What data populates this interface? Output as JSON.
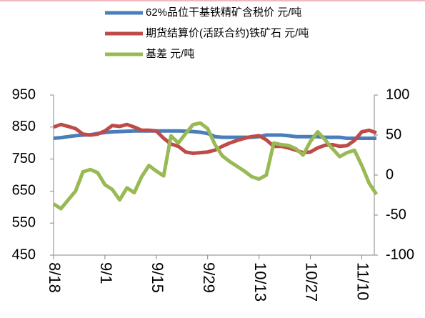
{
  "chart_data": {
    "type": "line",
    "categories": [
      "8/18",
      null,
      null,
      null,
      null,
      null,
      null,
      "9/1",
      null,
      null,
      null,
      null,
      null,
      null,
      "9/15",
      null,
      null,
      null,
      null,
      null,
      null,
      "9/29",
      null,
      null,
      null,
      null,
      null,
      null,
      "10/13",
      null,
      null,
      null,
      null,
      null,
      null,
      "10/27",
      null,
      null,
      null,
      null,
      null,
      null,
      "11/10",
      null,
      null
    ],
    "series": [
      {
        "name": "62%品位干基铁精矿含税价 元/吨",
        "color": "#4a7ebb",
        "values": [
          815,
          817,
          820,
          823,
          825,
          826,
          830,
          833,
          835,
          836,
          837,
          838,
          838,
          838,
          838,
          838,
          838,
          838,
          837,
          836,
          834,
          830,
          820,
          818,
          818,
          818,
          818,
          818,
          820,
          825,
          825,
          825,
          823,
          820,
          820,
          820,
          820,
          818,
          818,
          818,
          815,
          815,
          815,
          815,
          815
        ]
      },
      {
        "name": "期货结算价(活跃合约)铁矿石 元/吨",
        "color": "#be4b48",
        "values": [
          850,
          858,
          852,
          845,
          828,
          825,
          828,
          838,
          855,
          852,
          858,
          850,
          840,
          840,
          838,
          815,
          797,
          790,
          772,
          768,
          770,
          772,
          778,
          790,
          800,
          808,
          815,
          820,
          823,
          810,
          790,
          790,
          785,
          778,
          770,
          772,
          785,
          793,
          795,
          790,
          792,
          808,
          835,
          840,
          832
        ]
      },
      {
        "name": "基差 元/吨",
        "color": "#98b954",
        "axis": "y2",
        "values": [
          -36,
          -42,
          -31,
          -20,
          4,
          7,
          3,
          -12,
          -18,
          -31,
          -16,
          -22,
          -2,
          12,
          5,
          -1,
          49,
          40,
          52,
          63,
          65,
          58,
          38,
          24,
          17,
          11,
          5,
          -2,
          -5,
          0,
          40,
          38,
          37,
          33,
          25,
          42,
          54,
          44,
          33,
          23,
          28,
          31,
          12,
          -10,
          -24
        ]
      }
    ],
    "ylim": [
      450,
      950
    ],
    "yticks": [
      450,
      550,
      650,
      750,
      850,
      950
    ],
    "y2lim": [
      -100,
      100
    ],
    "y2ticks": [
      -100,
      -50,
      0,
      50,
      100
    ],
    "grid": false,
    "legend": "top"
  }
}
